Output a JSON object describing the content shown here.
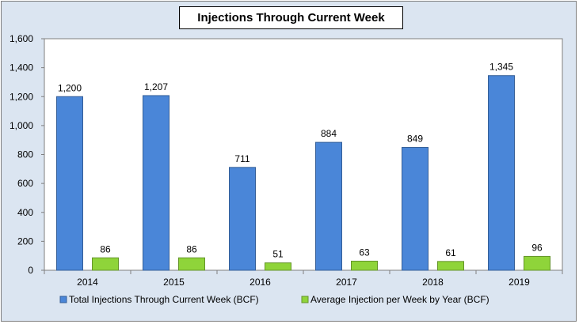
{
  "chart_data": {
    "type": "bar",
    "title": "Injections Through Current Week",
    "categories": [
      "2014",
      "2015",
      "2016",
      "2017",
      "2018",
      "2019"
    ],
    "series": [
      {
        "name": "Total Injections Through Current Week (BCF)",
        "values": [
          1200,
          1207,
          711,
          884,
          849,
          1345
        ],
        "labels": [
          "1,200",
          "1,207",
          "711",
          "884",
          "849",
          "1,345"
        ],
        "color": "#4a86d8"
      },
      {
        "name": "Average Injection per Week by Year (BCF)",
        "values": [
          86,
          86,
          51,
          63,
          61,
          96
        ],
        "labels": [
          "86",
          "86",
          "51",
          "63",
          "61",
          "96"
        ],
        "color": "#8fd43a"
      }
    ],
    "y_ticks": [
      "0",
      "200",
      "400",
      "600",
      "800",
      "1,000",
      "1,200",
      "1,400",
      "1,600"
    ],
    "ylim": [
      0,
      1600
    ],
    "grid": false,
    "legend": "bottom",
    "background": "#dbe5f1"
  }
}
